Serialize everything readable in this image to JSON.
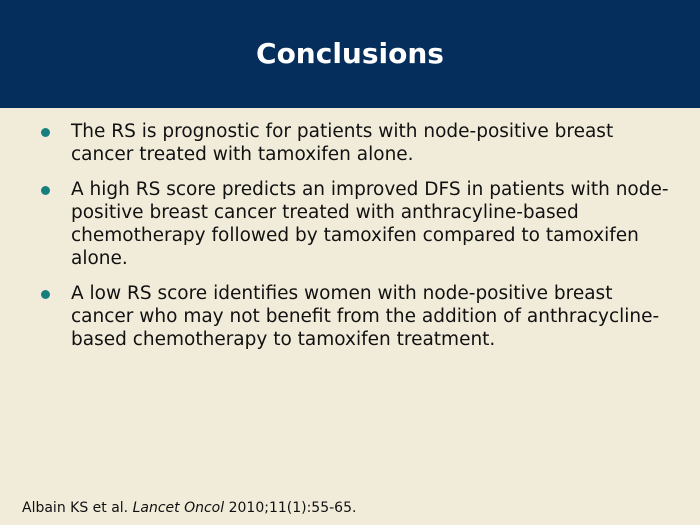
{
  "slide": {
    "title": "Conclusions",
    "bullets": [
      "The RS is prognostic for patients with node-positive breast cancer treated with tamoxifen alone.",
      "A high RS score predicts an improved DFS in patients with node-positive breast cancer treated with anthracyline-based chemotherapy followed by tamoxifen compared to tamoxifen alone.",
      "A low RS score identifies women with node-positive breast cancer who may not benefit from the addition of anthracycline-based chemotherapy to tamoxifen treatment."
    ],
    "citation": {
      "authors": "Albain KS et al.",
      "journal": "Lancet Oncol",
      "details": "2010;11(1):55-65."
    }
  },
  "colors": {
    "title_bar": "#052e5c",
    "background": "#f1ebd9",
    "bullet": "#17807e",
    "title_text": "#ffffff",
    "body_text": "#111111"
  }
}
